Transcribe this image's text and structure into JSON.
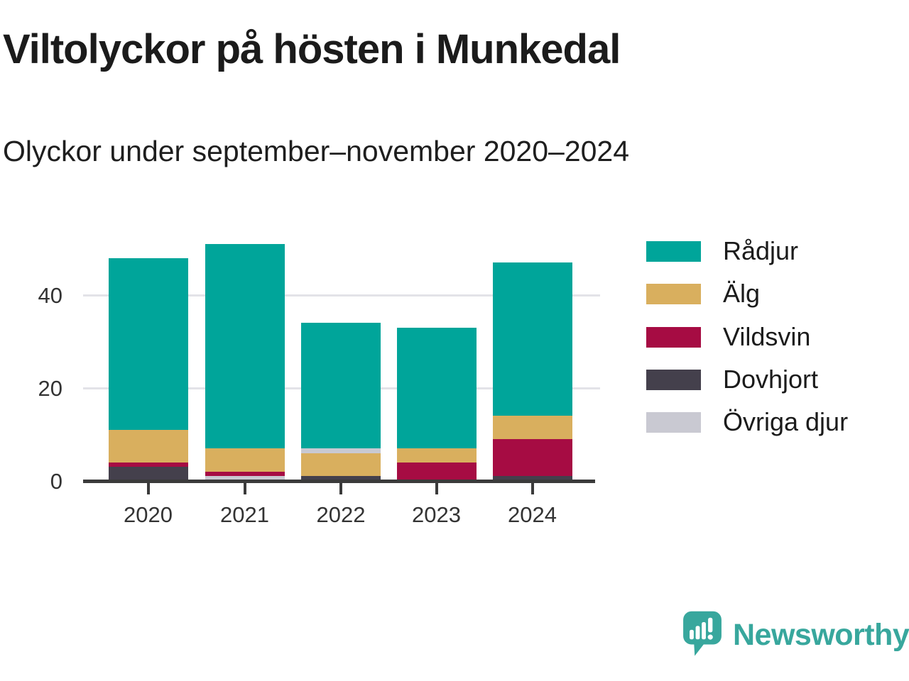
{
  "title": "Viltolyckor på hösten i Munkedal",
  "subtitle": "Olyckor under september–november 2020–2024",
  "chart_data": {
    "type": "bar",
    "stacked": true,
    "title": "Viltolyckor på hösten i Munkedal",
    "subtitle": "Olyckor under september–november 2020–2024",
    "categories": [
      "2020",
      "2021",
      "2022",
      "2023",
      "2024"
    ],
    "series": [
      {
        "name": "Rådjur",
        "color": "#00a59a",
        "values": [
          37,
          44,
          27,
          26,
          33
        ]
      },
      {
        "name": "Älg",
        "color": "#d9af5e",
        "values": [
          7,
          5,
          5,
          3,
          5
        ]
      },
      {
        "name": "Vildsvin",
        "color": "#a60c43",
        "values": [
          1,
          1,
          0,
          4,
          8
        ]
      },
      {
        "name": "Dovhjort",
        "color": "#44404c",
        "values": [
          3,
          0,
          1,
          0,
          1
        ]
      },
      {
        "name": "Övriga djur",
        "color": "#c9c9d2",
        "values": [
          0,
          1,
          1,
          0,
          0
        ]
      }
    ],
    "totals": [
      48,
      51,
      34,
      33,
      47
    ],
    "stack_order_bottom_to_top": [
      [
        "Dovhjort",
        "Vildsvin",
        "Älg",
        "Rådjur"
      ],
      [
        "Övriga djur",
        "Vildsvin",
        "Älg",
        "Rådjur"
      ],
      [
        "Dovhjort",
        "Älg",
        "Övriga djur",
        "Rådjur"
      ],
      [
        "Vildsvin",
        "Älg",
        "Rådjur"
      ],
      [
        "Dovhjort",
        "Vildsvin",
        "Älg",
        "Rådjur"
      ]
    ],
    "yticks": [
      {
        "value": 0,
        "label": "0"
      },
      {
        "value": 20,
        "label": "20"
      },
      {
        "value": 40,
        "label": "40"
      }
    ],
    "ylim": [
      0,
      52
    ],
    "xlabel": "",
    "ylabel": "",
    "grid": "horizontal",
    "legend_position": "right"
  },
  "legend": {
    "items": [
      {
        "label": "Rådjur",
        "color": "#00a59a"
      },
      {
        "label": "Älg",
        "color": "#d9af5e"
      },
      {
        "label": "Vildsvin",
        "color": "#a60c43"
      },
      {
        "label": "Dovhjort",
        "color": "#44404c"
      },
      {
        "label": "Övriga djur",
        "color": "#c9c9d2"
      }
    ]
  },
  "branding": {
    "logo_text": "Newsworthy",
    "logo_color": "#38a79d",
    "logo_icon": "bar-chart-speech-bubble-icon"
  }
}
